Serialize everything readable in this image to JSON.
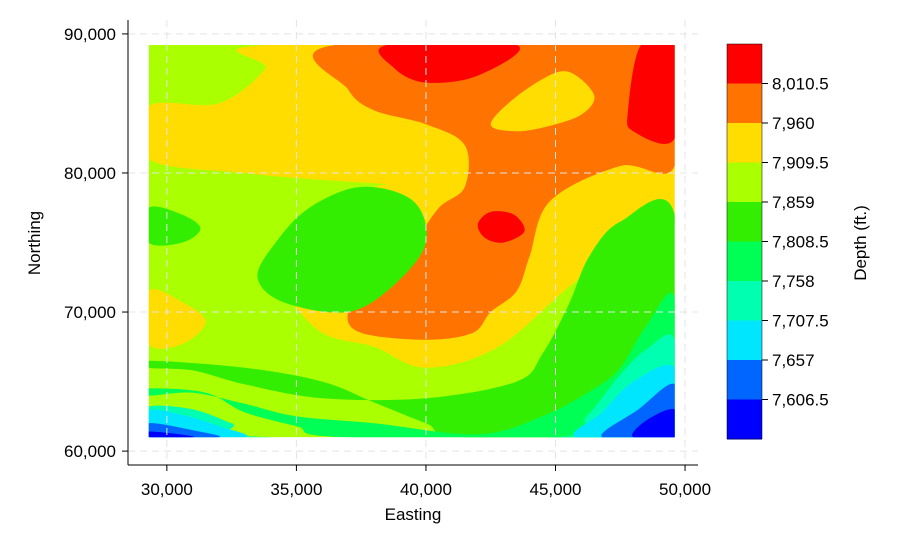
{
  "chart_data": {
    "type": "heatmap",
    "title": "",
    "xlabel": "Easting",
    "ylabel": "Northing",
    "xlim": [
      28500,
      50500
    ],
    "ylim": [
      59000,
      91000
    ],
    "data_extent": {
      "x": [
        29300,
        49600
      ],
      "y": [
        61000,
        89200
      ]
    },
    "x_ticks": [
      30000,
      35000,
      40000,
      45000,
      50000
    ],
    "x_tick_labels": [
      "30,000",
      "35,000",
      "40,000",
      "45,000",
      "50,000"
    ],
    "y_ticks": [
      60000,
      70000,
      80000,
      90000
    ],
    "y_tick_labels": [
      "60,000",
      "70,000",
      "80,000",
      "90,000"
    ],
    "grid": "dashed light gray",
    "colorbar": {
      "label": "Depth (ft.)",
      "levels": [
        "8,010.5",
        "7,960",
        "7,909.5",
        "7,859",
        "7,808.5",
        "7,758",
        "7,707.5",
        "7,657",
        "7,606.5"
      ],
      "colors_top_to_bottom": [
        "#ff0000",
        "#ff7300",
        "#ffdd00",
        "#aaff00",
        "#33ee00",
        "#00ff55",
        "#00ffb0",
        "#00e6ff",
        "#0066ff",
        "#0000ff"
      ]
    },
    "regions": [
      {
        "level": 2,
        "color": "#aaff00",
        "points": [
          [
            29300,
            89200
          ],
          [
            49600,
            89200
          ],
          [
            49600,
            61000
          ],
          [
            29300,
            61000
          ]
        ]
      },
      {
        "level": 3,
        "color": "#ffdd00",
        "points": [
          [
            33800,
            89200
          ],
          [
            49600,
            89200
          ],
          [
            49600,
            76500
          ],
          [
            46000,
            72500
          ],
          [
            42800,
            67500
          ],
          [
            40000,
            66000
          ],
          [
            38000,
            67500
          ],
          [
            36000,
            68500
          ],
          [
            34500,
            71500
          ],
          [
            34000,
            73500
          ],
          [
            35400,
            76000
          ],
          [
            38000,
            79000
          ],
          [
            40000,
            79000
          ],
          [
            36000,
            79500
          ],
          [
            33000,
            80000
          ],
          [
            29300,
            81000
          ],
          [
            29300,
            84800
          ],
          [
            32000,
            85000
          ],
          [
            33800,
            87500
          ]
        ]
      },
      {
        "level": 3,
        "color": "#ffdd00",
        "points": [
          [
            29300,
            71500
          ],
          [
            30600,
            70700
          ],
          [
            31500,
            69300
          ],
          [
            30600,
            67700
          ],
          [
            29300,
            67700
          ]
        ]
      },
      {
        "level": 4,
        "color": "#ff7300",
        "points": [
          [
            36500,
            89200
          ],
          [
            49600,
            89200
          ],
          [
            49600,
            80500
          ],
          [
            47500,
            80500
          ],
          [
            44800,
            78000
          ],
          [
            44000,
            74000
          ],
          [
            43500,
            71500
          ],
          [
            42500,
            70000
          ],
          [
            41800,
            68500
          ],
          [
            40000,
            68000
          ],
          [
            37500,
            68500
          ],
          [
            37000,
            70000
          ],
          [
            38000,
            72500
          ],
          [
            39500,
            75000
          ],
          [
            40500,
            77500
          ],
          [
            41500,
            79000
          ],
          [
            41500,
            82000
          ],
          [
            40000,
            83500
          ],
          [
            38000,
            84500
          ],
          [
            37000,
            86000
          ]
        ]
      },
      {
        "level": 3,
        "color": "#ffdd00",
        "points": [
          [
            42500,
            83500
          ],
          [
            43500,
            85500
          ],
          [
            45000,
            87200
          ],
          [
            45800,
            87000
          ],
          [
            46500,
            85500
          ],
          [
            46000,
            84200
          ],
          [
            44800,
            83400
          ],
          [
            43500,
            83000
          ]
        ]
      },
      {
        "level": 5,
        "color": "#ff0000",
        "points": [
          [
            38500,
            89200
          ],
          [
            43500,
            89200
          ],
          [
            42000,
            87000
          ],
          [
            40000,
            86500
          ],
          [
            38800,
            87500
          ]
        ]
      },
      {
        "level": 5,
        "color": "#ff0000",
        "points": [
          [
            48300,
            89200
          ],
          [
            49600,
            89200
          ],
          [
            49600,
            82500
          ],
          [
            48000,
            83000
          ],
          [
            47800,
            84500
          ]
        ]
      },
      {
        "level": 5,
        "color": "#ff0000",
        "points": [
          [
            42000,
            76300
          ],
          [
            42500,
            77200
          ],
          [
            43400,
            77000
          ],
          [
            43800,
            75800
          ],
          [
            43000,
            75000
          ],
          [
            42300,
            75300
          ]
        ]
      },
      {
        "level": 1,
        "color": "#33ee00",
        "points": [
          [
            34200,
            75000
          ],
          [
            35500,
            77500
          ],
          [
            37500,
            79000
          ],
          [
            39500,
            78000
          ],
          [
            40000,
            75000
          ],
          [
            38800,
            72000
          ],
          [
            37000,
            70000
          ],
          [
            34500,
            70700
          ],
          [
            33500,
            72500
          ]
        ]
      },
      {
        "level": 1,
        "color": "#33ee00",
        "points": [
          [
            29300,
            77500
          ],
          [
            30600,
            77000
          ],
          [
            31300,
            76000
          ],
          [
            30600,
            75000
          ],
          [
            29300,
            75000
          ]
        ]
      },
      {
        "level": 1,
        "color": "#33ee00",
        "points": [
          [
            29300,
            66500
          ],
          [
            33000,
            66000
          ],
          [
            36000,
            65000
          ],
          [
            38000,
            63500
          ],
          [
            40000,
            62000
          ],
          [
            41500,
            61000
          ],
          [
            49600,
            61000
          ],
          [
            49600,
            77000
          ],
          [
            47500,
            76500
          ],
          [
            46300,
            74000
          ],
          [
            45500,
            70500
          ],
          [
            44500,
            67000
          ],
          [
            43500,
            65000
          ],
          [
            40000,
            63800
          ],
          [
            36000,
            63800
          ],
          [
            33000,
            64800
          ],
          [
            31000,
            65800
          ],
          [
            29300,
            66000
          ]
        ]
      },
      {
        "level": 0,
        "color": "#00ff55",
        "points": [
          [
            29300,
            64500
          ],
          [
            31500,
            64200
          ],
          [
            33000,
            62800
          ],
          [
            35000,
            61800
          ],
          [
            37000,
            61000
          ],
          [
            49600,
            61000
          ],
          [
            49600,
            71000
          ],
          [
            48500,
            69000
          ],
          [
            47500,
            66000
          ],
          [
            46500,
            64500
          ],
          [
            44500,
            62500
          ],
          [
            42000,
            61200
          ],
          [
            38000,
            62000
          ],
          [
            35000,
            62500
          ],
          [
            33000,
            63400
          ],
          [
            31000,
            64200
          ],
          [
            29300,
            64000
          ]
        ]
      },
      {
        "level": -1,
        "color": "#00ffb0",
        "points": [
          [
            29300,
            63200
          ],
          [
            31000,
            63000
          ],
          [
            32500,
            62000
          ],
          [
            34000,
            61000
          ],
          [
            49600,
            61000
          ],
          [
            49600,
            68000
          ],
          [
            48500,
            67300
          ],
          [
            47500,
            65500
          ],
          [
            46200,
            62500
          ],
          [
            45000,
            61000
          ],
          [
            33000,
            61000
          ],
          [
            31000,
            62300
          ],
          [
            29300,
            62000
          ]
        ]
      },
      {
        "level": -2,
        "color": "#00e6ff",
        "points": [
          [
            29300,
            62900
          ],
          [
            30800,
            62500
          ],
          [
            32000,
            61800
          ],
          [
            33000,
            61000
          ],
          [
            29300,
            61000
          ]
        ]
      },
      {
        "level": -2,
        "color": "#00e6ff",
        "points": [
          [
            45800,
            61000
          ],
          [
            49600,
            61000
          ],
          [
            49600,
            66000
          ],
          [
            48000,
            65000
          ],
          [
            46800,
            62800
          ]
        ]
      },
      {
        "level": -3,
        "color": "#0066ff",
        "points": [
          [
            29300,
            62000
          ],
          [
            31000,
            61500
          ],
          [
            32000,
            61000
          ],
          [
            29300,
            61000
          ]
        ]
      },
      {
        "level": -3,
        "color": "#0066ff",
        "points": [
          [
            46800,
            61000
          ],
          [
            49600,
            61000
          ],
          [
            49600,
            64800
          ],
          [
            48200,
            63000
          ]
        ]
      },
      {
        "level": -4,
        "color": "#0000ff",
        "points": [
          [
            29300,
            61400
          ],
          [
            30500,
            61200
          ],
          [
            31000,
            61000
          ],
          [
            29300,
            61000
          ]
        ]
      },
      {
        "level": -4,
        "color": "#0000ff",
        "points": [
          [
            48000,
            61000
          ],
          [
            49600,
            61000
          ],
          [
            49600,
            63000
          ],
          [
            48500,
            62200
          ]
        ]
      }
    ]
  }
}
